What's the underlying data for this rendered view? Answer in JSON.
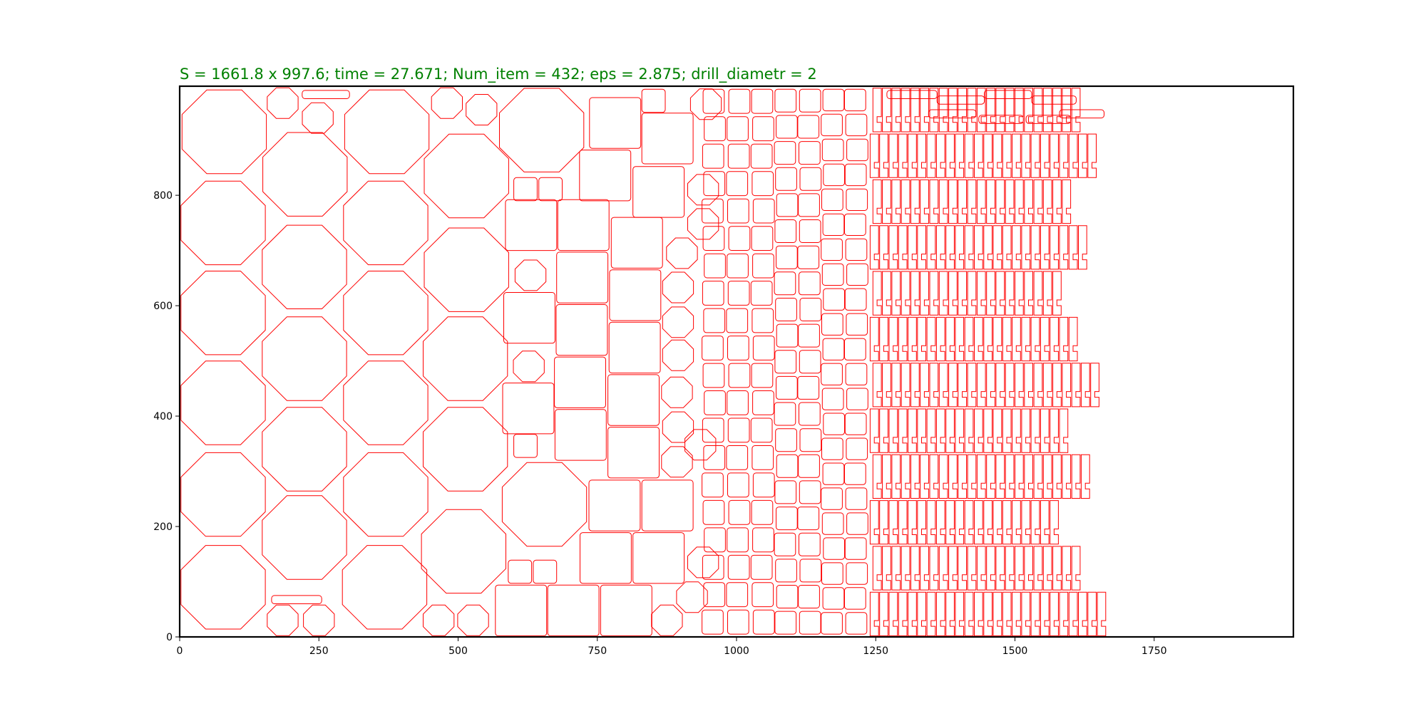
{
  "chart_data": {
    "type": "scatter",
    "title": "S = 1661.8 x 997.6;  time = 27.671;  Num_item = 432;  eps = 2.875;  drill_diametr = 2",
    "title_color": "#008000",
    "xlabel": "",
    "ylabel": "",
    "xlim": [
      0,
      2000
    ],
    "ylim": [
      0,
      997.6
    ],
    "x_ticks": [
      0,
      250,
      500,
      750,
      1000,
      1250,
      1500,
      1750
    ],
    "y_ticks": [
      0,
      200,
      400,
      600,
      800
    ],
    "grid": false,
    "legend": "none",
    "outline_color": "#ff0000",
    "bins": {
      "label": "",
      "columns": [
        {
          "x0": 1,
          "x1": 22
        },
        {
          "x0": 27,
          "x1": 54
        },
        {
          "x0": 59,
          "x1": 86
        },
        {
          "x0": 91,
          "x1": 118
        }
      ]
    },
    "octagons_large": [
      {
        "cx": 80,
        "cy": 915,
        "r": 82
      },
      {
        "cx": 78,
        "cy": 750,
        "r": 82
      },
      {
        "cx": 78,
        "cy": 587,
        "r": 82
      },
      {
        "cx": 78,
        "cy": 424,
        "r": 82
      },
      {
        "cx": 78,
        "cy": 258,
        "r": 82
      },
      {
        "cx": 78,
        "cy": 90,
        "r": 82
      },
      {
        "cx": 225,
        "cy": 838,
        "r": 82
      },
      {
        "cx": 224,
        "cy": 670,
        "r": 82
      },
      {
        "cx": 224,
        "cy": 504,
        "r": 82
      },
      {
        "cx": 224,
        "cy": 340,
        "r": 82
      },
      {
        "cx": 224,
        "cy": 180,
        "r": 82
      },
      {
        "cx": 372,
        "cy": 915,
        "r": 82
      },
      {
        "cx": 370,
        "cy": 750,
        "r": 82
      },
      {
        "cx": 370,
        "cy": 587,
        "r": 82
      },
      {
        "cx": 370,
        "cy": 424,
        "r": 82
      },
      {
        "cx": 370,
        "cy": 258,
        "r": 82
      },
      {
        "cx": 368,
        "cy": 90,
        "r": 82
      },
      {
        "cx": 515,
        "cy": 835,
        "r": 82
      },
      {
        "cx": 515,
        "cy": 665,
        "r": 82
      },
      {
        "cx": 513,
        "cy": 504,
        "r": 82
      },
      {
        "cx": 513,
        "cy": 340,
        "r": 82
      },
      {
        "cx": 510,
        "cy": 155,
        "r": 82
      },
      {
        "cx": 650,
        "cy": 918,
        "r": 82
      },
      {
        "cx": 655,
        "cy": 240,
        "r": 82
      }
    ],
    "octagons_small": [
      {
        "cx": 185,
        "cy": 967,
        "r": 30
      },
      {
        "cx": 248,
        "cy": 940,
        "r": 30
      },
      {
        "cx": 480,
        "cy": 967,
        "r": 30
      },
      {
        "cx": 542,
        "cy": 955,
        "r": 30
      },
      {
        "cx": 630,
        "cy": 655,
        "r": 30
      },
      {
        "cx": 627,
        "cy": 490,
        "r": 30
      },
      {
        "cx": 945,
        "cy": 965,
        "r": 30
      },
      {
        "cx": 940,
        "cy": 810,
        "r": 30
      },
      {
        "cx": 940,
        "cy": 748,
        "r": 30
      },
      {
        "cx": 902,
        "cy": 695,
        "r": 30
      },
      {
        "cx": 895,
        "cy": 633,
        "r": 30
      },
      {
        "cx": 895,
        "cy": 570,
        "r": 30
      },
      {
        "cx": 895,
        "cy": 510,
        "r": 30
      },
      {
        "cx": 893,
        "cy": 443,
        "r": 30
      },
      {
        "cx": 895,
        "cy": 380,
        "r": 30
      },
      {
        "cx": 935,
        "cy": 348,
        "r": 30
      },
      {
        "cx": 893,
        "cy": 317,
        "r": 30
      },
      {
        "cx": 940,
        "cy": 135,
        "r": 30
      },
      {
        "cx": 920,
        "cy": 72,
        "r": 30
      },
      {
        "cx": 875,
        "cy": 30,
        "r": 30
      },
      {
        "cx": 185,
        "cy": 30,
        "r": 30
      },
      {
        "cx": 250,
        "cy": 30,
        "r": 30
      },
      {
        "cx": 465,
        "cy": 30,
        "r": 30
      },
      {
        "cx": 527,
        "cy": 30,
        "r": 30
      }
    ],
    "squares_large": [
      {
        "x": 736,
        "y": 885,
        "w": 92,
        "h": 92
      },
      {
        "x": 830,
        "y": 857,
        "w": 92,
        "h": 92
      },
      {
        "x": 718,
        "y": 790,
        "w": 92,
        "h": 92
      },
      {
        "x": 814,
        "y": 760,
        "w": 92,
        "h": 92
      },
      {
        "x": 585,
        "y": 700,
        "w": 92,
        "h": 92
      },
      {
        "x": 679,
        "y": 700,
        "w": 92,
        "h": 92
      },
      {
        "x": 775,
        "y": 668,
        "w": 92,
        "h": 92
      },
      {
        "x": 677,
        "y": 605,
        "w": 92,
        "h": 92
      },
      {
        "x": 772,
        "y": 573,
        "w": 92,
        "h": 92
      },
      {
        "x": 582,
        "y": 532,
        "w": 92,
        "h": 92
      },
      {
        "x": 676,
        "y": 510,
        "w": 92,
        "h": 92
      },
      {
        "x": 771,
        "y": 478,
        "w": 92,
        "h": 92
      },
      {
        "x": 673,
        "y": 415,
        "w": 92,
        "h": 92
      },
      {
        "x": 769,
        "y": 383,
        "w": 92,
        "h": 92
      },
      {
        "x": 580,
        "y": 368,
        "w": 92,
        "h": 92
      },
      {
        "x": 674,
        "y": 320,
        "w": 92,
        "h": 92
      },
      {
        "x": 769,
        "y": 288,
        "w": 92,
        "h": 92
      },
      {
        "x": 735,
        "y": 192,
        "w": 92,
        "h": 92
      },
      {
        "x": 830,
        "y": 192,
        "w": 92,
        "h": 92
      },
      {
        "x": 719,
        "y": 97,
        "w": 92,
        "h": 92
      },
      {
        "x": 814,
        "y": 97,
        "w": 92,
        "h": 92
      },
      {
        "x": 567,
        "y": 2,
        "w": 92,
        "h": 92
      },
      {
        "x": 661,
        "y": 2,
        "w": 92,
        "h": 92
      },
      {
        "x": 756,
        "y": 2,
        "w": 92,
        "h": 92
      }
    ],
    "small_squares": [
      {
        "x": 830,
        "y": 950,
        "w": 42,
        "h": 42
      },
      {
        "x": 600,
        "y": 790,
        "w": 42,
        "h": 42
      },
      {
        "x": 645,
        "y": 790,
        "w": 42,
        "h": 42
      },
      {
        "x": 600,
        "y": 325,
        "w": 42,
        "h": 42
      },
      {
        "x": 590,
        "y": 97,
        "w": 42,
        "h": 42
      },
      {
        "x": 635,
        "y": 97,
        "w": 42,
        "h": 42
      }
    ],
    "tile_columns": [
      {
        "x": 940,
        "y0": 2,
        "y1": 995,
        "w": 42,
        "rows": 20
      },
      {
        "x": 984,
        "y0": 2,
        "y1": 995,
        "w": 42,
        "rows": 20
      },
      {
        "x": 1028,
        "y0": 2,
        "y1": 995,
        "w": 42,
        "rows": 20
      },
      {
        "x": 1070,
        "y0": 2,
        "y1": 995,
        "w": 42,
        "rows": 21
      },
      {
        "x": 1112,
        "y0": 2,
        "y1": 995,
        "w": 42,
        "rows": 21
      },
      {
        "x": 1154,
        "y0": 2,
        "y1": 995,
        "w": 42,
        "rows": 22
      },
      {
        "x": 1196,
        "y0": 2,
        "y1": 995,
        "w": 42,
        "rows": 22
      }
    ],
    "hook_region": {
      "x0": 1240,
      "x1": 1665,
      "y0": 0,
      "y1": 997.6
    },
    "top_slots": [
      {
        "x": 220,
        "y": 975,
        "w": 85,
        "h": 15
      },
      {
        "x": 165,
        "y": 60,
        "w": 90,
        "h": 15
      },
      {
        "x": 1270,
        "y": 975,
        "w": 90,
        "h": 15
      },
      {
        "x": 1360,
        "y": 965,
        "w": 85,
        "h": 15
      },
      {
        "x": 1445,
        "y": 975,
        "w": 85,
        "h": 15
      },
      {
        "x": 1530,
        "y": 965,
        "w": 80,
        "h": 15
      },
      {
        "x": 1345,
        "y": 940,
        "w": 85,
        "h": 15
      },
      {
        "x": 1435,
        "y": 930,
        "w": 80,
        "h": 15
      },
      {
        "x": 1520,
        "y": 930,
        "w": 80,
        "h": 15
      },
      {
        "x": 1580,
        "y": 940,
        "w": 80,
        "h": 15
      }
    ]
  }
}
